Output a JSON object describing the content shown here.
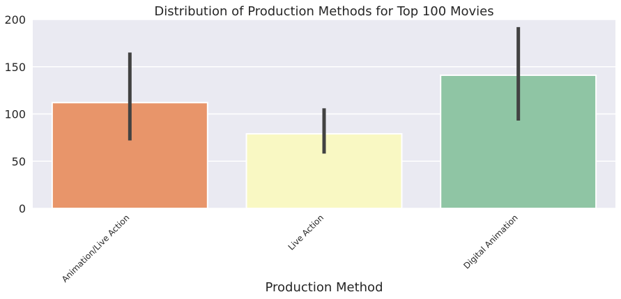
{
  "chart_data": {
    "type": "bar",
    "title": "Distribution of Production Methods for Top 100 Movies",
    "xlabel": "Production Method",
    "ylabel": "",
    "ylim": [
      0,
      200
    ],
    "yticks": [
      0,
      50,
      100,
      150,
      200
    ],
    "grid": true,
    "categories": [
      "Animation/Live Action",
      "Live Action",
      "Digital Animation"
    ],
    "values": [
      112,
      79,
      141
    ],
    "error_low": [
      72,
      58,
      93
    ],
    "error_high": [
      165,
      106,
      192
    ],
    "colors": [
      "#e8956a",
      "#f9f8c3",
      "#8fc5a4"
    ],
    "error_color": "#424242",
    "background_color": "#eaeaf2"
  }
}
